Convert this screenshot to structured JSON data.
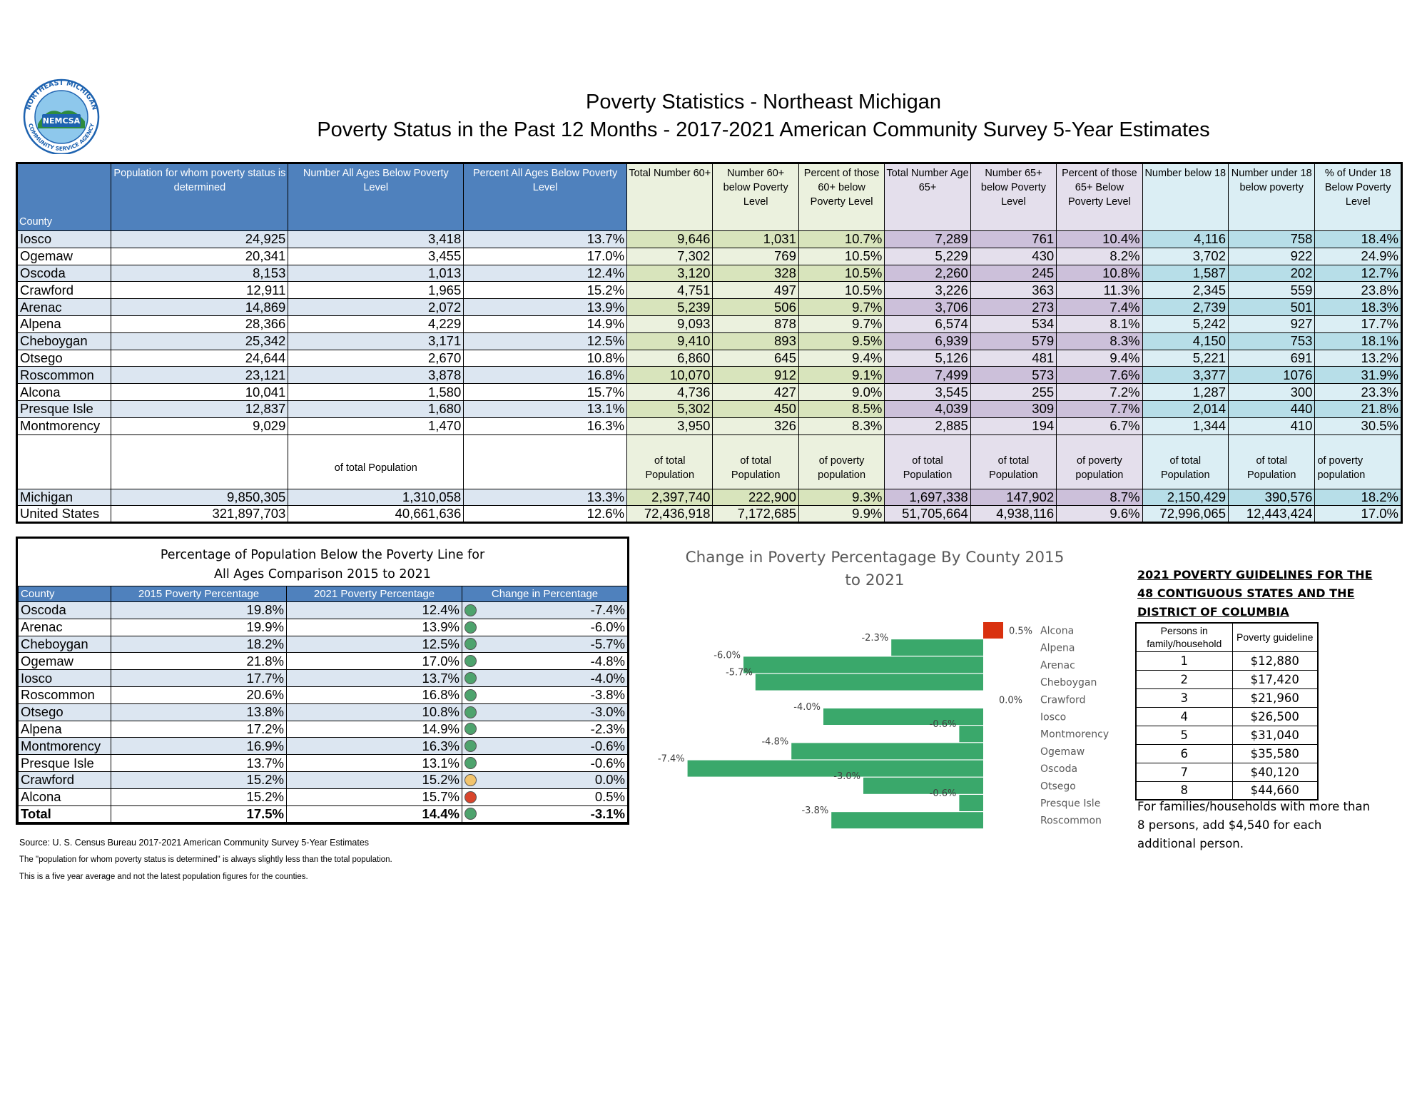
{
  "logo": {
    "arc_top": "NORTHEAST MICHIGAN",
    "arc_bottom": "COMMUNITY SERVICE AGENCY",
    "badge": "NEMCSA"
  },
  "title": {
    "line1": "Poverty Statistics - Northeast Michigan",
    "line2": "Poverty Status in the Past 12 Months - 2017-2021 American Community Survey 5-Year Estimates"
  },
  "main_table": {
    "headers": [
      "County",
      "Population for whom poverty status is determined",
      "Number All Ages Below Poverty Level",
      "Percent All Ages Below Poverty Level",
      "Total Number 60+",
      "Number 60+ below Poverty Level",
      "Percent of those 60+ below Poverty Level",
      "Total Number Age 65+",
      "Number 65+ below Poverty Level",
      "Percent of those 65+ Below Poverty Level",
      "Number below 18",
      "Number under 18 below poverty",
      "% of Under 18 Below Poverty Level"
    ],
    "rows": [
      [
        "Iosco",
        "24,925",
        "3,418",
        "13.7%",
        "9,646",
        "1,031",
        "10.7%",
        "7,289",
        "761",
        "10.4%",
        "4,116",
        "758",
        "18.4%"
      ],
      [
        "Ogemaw",
        "20,341",
        "3,455",
        "17.0%",
        "7,302",
        "769",
        "10.5%",
        "5,229",
        "430",
        "8.2%",
        "3,702",
        "922",
        "24.9%"
      ],
      [
        "Oscoda",
        "8,153",
        "1,013",
        "12.4%",
        "3,120",
        "328",
        "10.5%",
        "2,260",
        "245",
        "10.8%",
        "1,587",
        "202",
        "12.7%"
      ],
      [
        "Crawford",
        "12,911",
        "1,965",
        "15.2%",
        "4,751",
        "497",
        "10.5%",
        "3,226",
        "363",
        "11.3%",
        "2,345",
        "559",
        "23.8%"
      ],
      [
        "Arenac",
        "14,869",
        "2,072",
        "13.9%",
        "5,239",
        "506",
        "9.7%",
        "3,706",
        "273",
        "7.4%",
        "2,739",
        "501",
        "18.3%"
      ],
      [
        "Alpena",
        "28,366",
        "4,229",
        "14.9%",
        "9,093",
        "878",
        "9.7%",
        "6,574",
        "534",
        "8.1%",
        "5,242",
        "927",
        "17.7%"
      ],
      [
        "Cheboygan",
        "25,342",
        "3,171",
        "12.5%",
        "9,410",
        "893",
        "9.5%",
        "6,939",
        "579",
        "8.3%",
        "4,150",
        "753",
        "18.1%"
      ],
      [
        "Otsego",
        "24,644",
        "2,670",
        "10.8%",
        "6,860",
        "645",
        "9.4%",
        "5,126",
        "481",
        "9.4%",
        "5,221",
        "691",
        "13.2%"
      ],
      [
        "Roscommon",
        "23,121",
        "3,878",
        "16.8%",
        "10,070",
        "912",
        "9.1%",
        "7,499",
        "573",
        "7.6%",
        "3,377",
        "1076",
        "31.9%"
      ],
      [
        "Alcona",
        "10,041",
        "1,580",
        "15.7%",
        "4,736",
        "427",
        "9.0%",
        "3,545",
        "255",
        "7.2%",
        "1,287",
        "300",
        "23.3%"
      ],
      [
        "Presque Isle",
        "12,837",
        "1,680",
        "13.1%",
        "5,302",
        "450",
        "8.5%",
        "4,039",
        "309",
        "7.7%",
        "2,014",
        "440",
        "21.8%"
      ],
      [
        "Montmorency",
        "9,029",
        "1,470",
        "16.3%",
        "3,950",
        "326",
        "8.3%",
        "2,885",
        "194",
        "6.7%",
        "1,344",
        "410",
        "30.5%"
      ]
    ],
    "notes": [
      "",
      "",
      "of total Population",
      "",
      "of total Population",
      "of total Population",
      "of poverty population",
      "of total Population",
      "of total Population",
      "of poverty population",
      "of total Population",
      "of total Population",
      "of poverty population"
    ],
    "summary_rows": [
      [
        "Michigan",
        "9,850,305",
        "1,310,058",
        "13.3%",
        "2,397,740",
        "222,900",
        "9.3%",
        "1,697,338",
        "147,902",
        "8.7%",
        "2,150,429",
        "390,576",
        "18.2%"
      ],
      [
        "United States",
        "321,897,703",
        "40,661,636",
        "12.6%",
        "72,436,918",
        "7,172,685",
        "9.9%",
        "51,705,664",
        "4,938,116",
        "9.6%",
        "72,996,065",
        "12,443,424",
        "17.0%"
      ]
    ]
  },
  "comparison": {
    "title_line1": "Percentage of Population Below the Poverty Line for",
    "title_line2": "All Ages Comparison 2015 to 2021",
    "headers": [
      "County",
      "2015 Poverty Percentage",
      "2021 Poverty Percentage",
      "Change in Percentage"
    ],
    "rows": [
      {
        "county": "Oscoda",
        "p2015": "19.8%",
        "p2021": "12.4%",
        "change": "-7.4%",
        "dot": "#4ea36d"
      },
      {
        "county": "Arenac",
        "p2015": "19.9%",
        "p2021": "13.9%",
        "change": "-6.0%",
        "dot": "#4ea36d"
      },
      {
        "county": "Cheboygan",
        "p2015": "18.2%",
        "p2021": "12.5%",
        "change": "-5.7%",
        "dot": "#4ea36d"
      },
      {
        "county": "Ogemaw",
        "p2015": "21.8%",
        "p2021": "17.0%",
        "change": "-4.8%",
        "dot": "#4ea36d"
      },
      {
        "county": "Iosco",
        "p2015": "17.7%",
        "p2021": "13.7%",
        "change": "-4.0%",
        "dot": "#4ea36d"
      },
      {
        "county": "Roscommon",
        "p2015": "20.6%",
        "p2021": "16.8%",
        "change": "-3.8%",
        "dot": "#4ea36d"
      },
      {
        "county": "Otsego",
        "p2015": "13.8%",
        "p2021": "10.8%",
        "change": "-3.0%",
        "dot": "#4ea36d"
      },
      {
        "county": "Alpena",
        "p2015": "17.2%",
        "p2021": "14.9%",
        "change": "-2.3%",
        "dot": "#4ea36d"
      },
      {
        "county": "Montmorency",
        "p2015": "16.9%",
        "p2021": "16.3%",
        "change": "-0.6%",
        "dot": "#4ea36d"
      },
      {
        "county": "Presque Isle",
        "p2015": "13.7%",
        "p2021": "13.1%",
        "change": "-0.6%",
        "dot": "#4ea36d"
      },
      {
        "county": "Crawford",
        "p2015": "15.2%",
        "p2021": "15.2%",
        "change": "0.0%",
        "dot": "#f2c46d"
      },
      {
        "county": "Alcona",
        "p2015": "15.2%",
        "p2021": "15.7%",
        "change": "0.5%",
        "dot": "#d9452c"
      }
    ],
    "total": {
      "county": "Total",
      "p2015": "17.5%",
      "p2021": "14.4%",
      "change": "-3.1%",
      "dot": "#4ea36d"
    }
  },
  "notes": [
    "Source: U. S. Census Bureau 2017-2021 American Community Survey 5-Year Estimates",
    "The \"population for whom poverty status is determined\" is always slightly less than the total population.",
    "This is a five year average and not the latest population figures for the counties."
  ],
  "chart_data": {
    "type": "bar",
    "orientation": "horizontal",
    "title": "Change in Poverty Percentagage By County  2015 to 2021",
    "categories": [
      "Alcona",
      "Alpena",
      "Arenac",
      "Cheboygan",
      "Crawford",
      "Iosco",
      "Montmorency",
      "Ogemaw",
      "Oscoda",
      "Otsego",
      "Presque Isle",
      "Roscommon"
    ],
    "values": [
      0.5,
      -2.3,
      -6.0,
      -5.7,
      0.0,
      -4.0,
      -0.6,
      -4.8,
      -7.4,
      -3.0,
      -0.6,
      -3.8
    ],
    "value_labels": [
      "0.5%",
      "-2.3%",
      "-6.0%",
      "-5.7%",
      "0.0%",
      "-4.0%",
      "-0.6%",
      "-4.8%",
      "-7.4%",
      "-3.0%",
      "-0.6%",
      "-3.8%"
    ],
    "colors": {
      "negative": "#3aa86b",
      "positive": "#d9310f"
    },
    "xlim": [
      -7.4,
      0.5
    ],
    "grid": false,
    "legend": "none"
  },
  "guidelines": {
    "title": "2021 POVERTY GUIDELINES FOR THE 48 CONTIGUOUS STATES AND THE DISTRICT OF COLUMBIA",
    "headers": [
      "Persons in family/household",
      "Poverty guideline"
    ],
    "rows": [
      [
        "1",
        "$12,880"
      ],
      [
        "2",
        "$17,420"
      ],
      [
        "3",
        "$21,960"
      ],
      [
        "4",
        "$26,500"
      ],
      [
        "5",
        "$31,040"
      ],
      [
        "6",
        "$35,580"
      ],
      [
        "7",
        "$40,120"
      ],
      [
        "8",
        "$44,660"
      ]
    ],
    "note": "For families/households with more than 8 persons, add $4,540 for each additional person."
  }
}
